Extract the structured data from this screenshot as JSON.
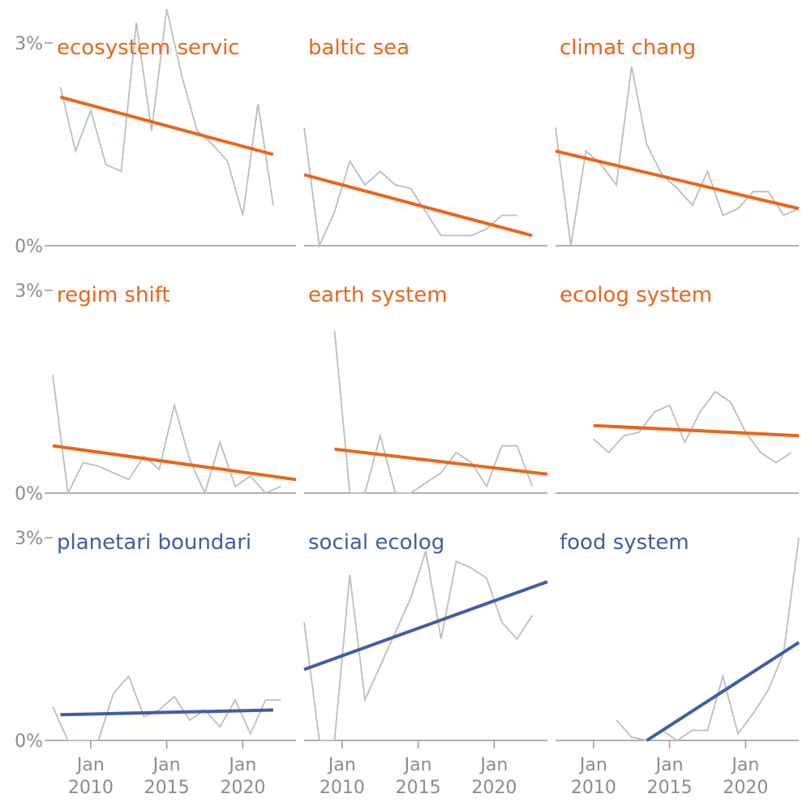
{
  "colors": {
    "decreasing": "#e8661a",
    "increasing": "#445ca3",
    "raw": "#bdbdbd",
    "axis": "#999999",
    "text": "#8c8c8c"
  },
  "chart_data": {
    "type": "line",
    "layout": "3x3 small multiples",
    "y_axis": {
      "ylim": [
        0,
        3
      ],
      "ticks": [
        0,
        3
      ],
      "tick_labels": [
        "0%",
        "3%"
      ],
      "unit": "%"
    },
    "x_axis": {
      "xlim": [
        2007.5,
        2023.5
      ],
      "ticks": [
        2010,
        2015,
        2020
      ],
      "tick_labels": [
        [
          "Jan",
          "2010"
        ],
        [
          "Jan",
          "2015"
        ],
        [
          "Jan",
          "2020"
        ]
      ]
    },
    "grid": false,
    "panels": [
      {
        "title": "ecosystem servic",
        "trend": "decreasing",
        "x": [
          2008,
          2009,
          2010,
          2011,
          2012,
          2013,
          2014,
          2015,
          2016,
          2017,
          2018,
          2019,
          2020,
          2021,
          2022
        ],
        "values": [
          2.35,
          1.4,
          2.0,
          1.2,
          1.1,
          3.3,
          1.7,
          3.5,
          2.5,
          1.7,
          1.5,
          1.25,
          0.45,
          2.1,
          0.6
        ],
        "trend_start": [
          2008,
          2.2
        ],
        "trend_end": [
          2022,
          1.35
        ]
      },
      {
        "title": "baltic sea",
        "trend": "decreasing",
        "x": [
          2007.5,
          2008.5,
          2009.5,
          2010.5,
          2011.5,
          2012.5,
          2013.5,
          2014.5,
          2015.5,
          2016.5,
          2017.5,
          2018.5,
          2019.5,
          2020.5,
          2021.5
        ],
        "values": [
          1.75,
          0.0,
          0.5,
          1.25,
          0.9,
          1.1,
          0.9,
          0.85,
          0.5,
          0.15,
          0.15,
          0.15,
          0.25,
          0.45,
          0.45
        ],
        "trend_start": [
          2007.5,
          1.05
        ],
        "trend_end": [
          2022.5,
          0.15
        ]
      },
      {
        "title": "climat chang",
        "trend": "decreasing",
        "x": [
          2007.5,
          2008.5,
          2009.5,
          2010.5,
          2011.5,
          2012.5,
          2013.5,
          2014.5,
          2015.5,
          2016.5,
          2017.5,
          2018.5,
          2019.5,
          2020.5,
          2021.5,
          2022.5,
          2023.5
        ],
        "values": [
          1.75,
          0.0,
          1.4,
          1.2,
          0.9,
          2.65,
          1.5,
          1.05,
          0.85,
          0.6,
          1.1,
          0.45,
          0.55,
          0.8,
          0.8,
          0.45,
          0.55
        ],
        "trend_start": [
          2007.5,
          1.4
        ],
        "trend_end": [
          2023.5,
          0.55
        ]
      },
      {
        "title": "regim shift",
        "trend": "decreasing",
        "x": [
          2007.5,
          2008.5,
          2009.5,
          2010.5,
          2011.5,
          2012.5,
          2013.5,
          2014.5,
          2015.5,
          2016.5,
          2017.5,
          2018.5,
          2019.5,
          2020.5,
          2021.5,
          2022.5
        ],
        "values": [
          1.75,
          0.0,
          0.45,
          0.4,
          0.3,
          0.2,
          0.55,
          0.35,
          1.3,
          0.5,
          0.0,
          0.75,
          0.1,
          0.25,
          0.0,
          0.1
        ],
        "trend_start": [
          2007.5,
          0.7
        ],
        "trend_end": [
          2023.5,
          0.2
        ]
      },
      {
        "title": "earth system",
        "trend": "decreasing",
        "x": [
          2009.5,
          2010.5,
          2011.5,
          2012.5,
          2013.5,
          2014.5,
          2015.5,
          2016.5,
          2017.5,
          2018.5,
          2019.5,
          2020.5,
          2021.5,
          2022.5
        ],
        "values": [
          2.4,
          0.0,
          0.0,
          0.85,
          0.0,
          0.0,
          0.15,
          0.3,
          0.6,
          0.45,
          0.1,
          0.7,
          0.7,
          0.1
        ],
        "trend_start": [
          2009.5,
          0.65
        ],
        "trend_end": [
          2023.5,
          0.28
        ]
      },
      {
        "title": "ecolog system",
        "trend": "decreasing",
        "x": [
          2010,
          2011,
          2012,
          2013,
          2014,
          2015,
          2016,
          2017,
          2018,
          2019,
          2020,
          2021,
          2022,
          2023
        ],
        "values": [
          0.8,
          0.6,
          0.85,
          0.9,
          1.2,
          1.3,
          0.75,
          1.2,
          1.5,
          1.35,
          0.9,
          0.6,
          0.45,
          0.6
        ],
        "trend_start": [
          2010,
          1.0
        ],
        "trend_end": [
          2023.5,
          0.85
        ]
      },
      {
        "title": "planetari boundari",
        "trend": "increasing",
        "x": [
          2007.5,
          2008.5,
          2009.5,
          2010.5,
          2011.5,
          2012.5,
          2013.5,
          2014.5,
          2015.5,
          2016.5,
          2017.5,
          2018.5,
          2019.5,
          2020.5,
          2021.5,
          2022.5
        ],
        "values": [
          0.5,
          0.0,
          0.0,
          0.0,
          0.7,
          0.95,
          0.35,
          0.45,
          0.65,
          0.3,
          0.45,
          0.2,
          0.6,
          0.1,
          0.6,
          0.6
        ],
        "trend_start": [
          2008,
          0.38
        ],
        "trend_end": [
          2022,
          0.45
        ]
      },
      {
        "title": "social ecolog",
        "trend": "increasing",
        "x": [
          2007.5,
          2008.5,
          2009.5,
          2010.5,
          2011.5,
          2012.5,
          2013.5,
          2014.5,
          2015.5,
          2016.5,
          2017.5,
          2018.5,
          2019.5,
          2020.5,
          2021.5,
          2022.5
        ],
        "values": [
          1.75,
          0.0,
          0.0,
          2.45,
          0.6,
          1.1,
          1.6,
          2.1,
          2.8,
          1.5,
          2.65,
          2.55,
          2.4,
          1.75,
          1.5,
          1.85
        ],
        "trend_start": [
          2007.5,
          1.05
        ],
        "trend_end": [
          2023.5,
          2.35
        ]
      },
      {
        "title": "food system",
        "trend": "increasing",
        "x": [
          2011.5,
          2012.5,
          2013.5,
          2014.5,
          2015.5,
          2016.5,
          2017.5,
          2018.5,
          2019.5,
          2020.5,
          2021.5,
          2022.5,
          2023.5
        ],
        "values": [
          0.3,
          0.05,
          0.0,
          0.15,
          0.0,
          0.15,
          0.15,
          0.95,
          0.1,
          0.4,
          0.75,
          1.3,
          3.0
        ],
        "trend_start": [
          2013.5,
          0.0
        ],
        "trend_end": [
          2023.5,
          1.45
        ]
      }
    ]
  }
}
